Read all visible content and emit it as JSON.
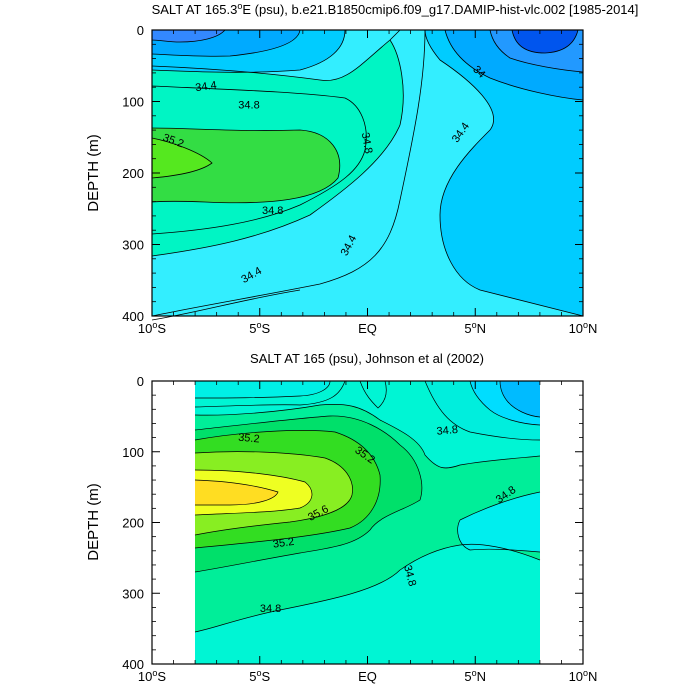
{
  "chart_data": [
    {
      "type": "contour",
      "title_main": "SALT AT 165.3",
      "title_deg": "o",
      "title_rest": "E (psu), b.e21.B1850cmip6.f09_g17.DAMIP-hist-vlc.002 [1985-2014]",
      "ylabel": "DEPTH (m)",
      "xticks": [
        {
          "lat": -10,
          "v": "10",
          "h": "S"
        },
        {
          "lat": -5,
          "v": "5",
          "h": "S"
        },
        {
          "lat": 0,
          "v": "",
          "h": "EQ"
        },
        {
          "lat": 5,
          "v": "5",
          "h": "N"
        },
        {
          "lat": 10,
          "v": "10",
          "h": "N"
        }
      ],
      "yticks": [
        "0",
        "100",
        "200",
        "300",
        "400"
      ],
      "xlim": [
        -10,
        10
      ],
      "ylim": [
        0,
        400
      ],
      "contour_labels": [
        {
          "text": "34.4",
          "lat": -7.5,
          "depth": 78
        },
        {
          "text": "34.8",
          "lat": -5.5,
          "depth": 104
        },
        {
          "text": "35.2",
          "lat": -9.0,
          "depth": 154
        },
        {
          "text": "34.8",
          "lat": 0.0,
          "depth": 158
        },
        {
          "text": "34",
          "lat": 5.2,
          "depth": 58
        },
        {
          "text": "34.4",
          "lat": 4.3,
          "depth": 143
        },
        {
          "text": "34.8",
          "lat": -4.4,
          "depth": 252
        },
        {
          "text": "34.4",
          "lat": -0.9,
          "depth": 301
        },
        {
          "text": "34.4",
          "lat": -5.4,
          "depth": 342
        }
      ]
    },
    {
      "type": "contour",
      "title": "SALT AT 165 (psu), Johnson et al (2002)",
      "ylabel": "DEPTH (m)",
      "xticks": [
        {
          "lat": -10,
          "v": "10",
          "h": "S"
        },
        {
          "lat": -5,
          "v": "5",
          "h": "S"
        },
        {
          "lat": 0,
          "v": "",
          "h": "EQ"
        },
        {
          "lat": 5,
          "v": "5",
          "h": "N"
        },
        {
          "lat": 10,
          "v": "10",
          "h": "N"
        }
      ],
      "yticks": [
        "0",
        "100",
        "200",
        "300",
        "400"
      ],
      "xlim": [
        -10,
        10
      ],
      "ylim": [
        0,
        400
      ],
      "data_lat_range": [
        -8,
        8
      ],
      "contour_labels": [
        {
          "text": "35.2",
          "lat": -5.5,
          "depth": 80
        },
        {
          "text": "35.2",
          "lat": -0.1,
          "depth": 104
        },
        {
          "text": "34.8",
          "lat": 3.7,
          "depth": 69
        },
        {
          "text": "35.6",
          "lat": -2.3,
          "depth": 186
        },
        {
          "text": "34.8",
          "lat": 6.4,
          "depth": 160
        },
        {
          "text": "35.2",
          "lat": -3.9,
          "depth": 228
        },
        {
          "text": "34.8",
          "lat": 2.0,
          "depth": 275
        },
        {
          "text": "34.8",
          "lat": -4.5,
          "depth": 321
        }
      ]
    }
  ]
}
